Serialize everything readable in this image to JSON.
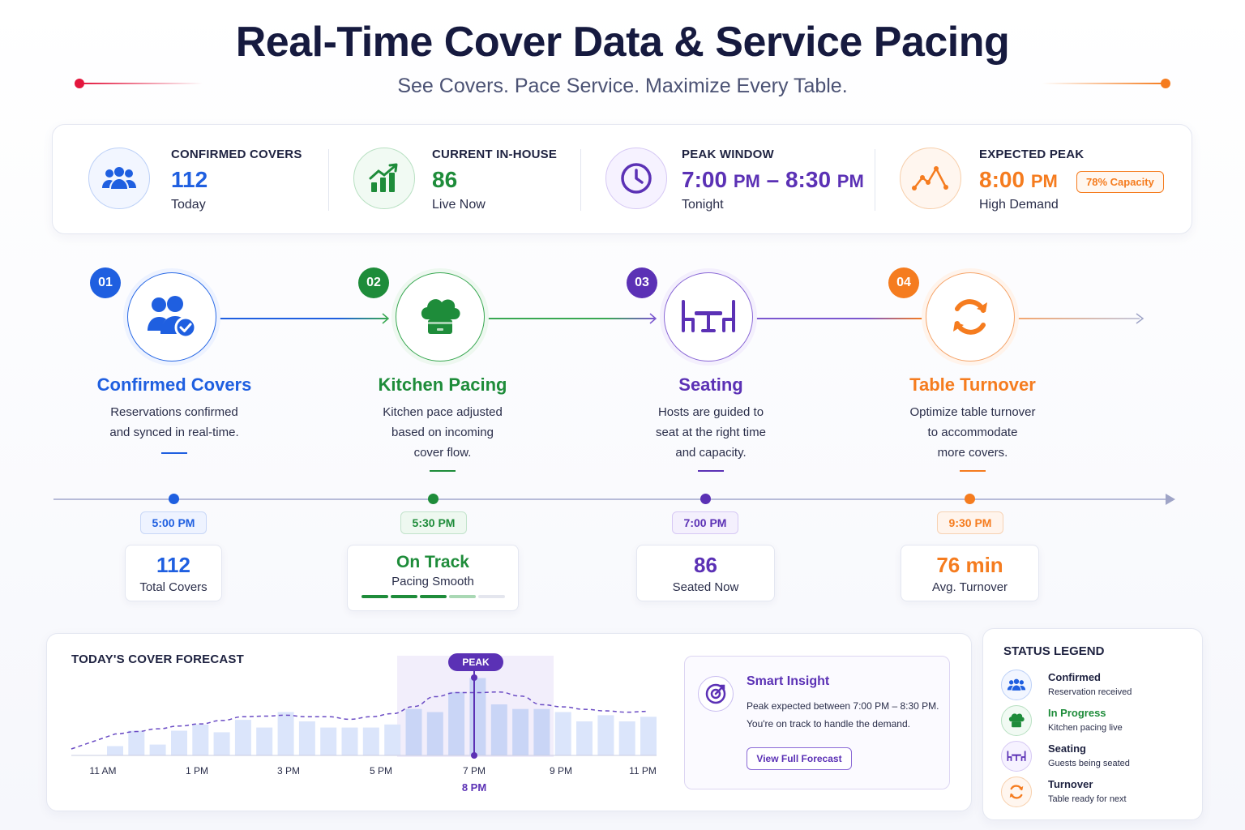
{
  "header": {
    "title": "Real-Time Cover Data & Service Pacing",
    "subtitle": "See Covers. Pace Service. Maximize Every Table."
  },
  "colors": {
    "blue": "#1f5fe0",
    "green": "#1e8c3a",
    "purple": "#5b31b5",
    "orange": "#f57c1f",
    "red": "#e3163d",
    "navy": "#161a3f"
  },
  "stats": [
    {
      "label": "CONFIRMED COVERS",
      "value": "112",
      "sub": "Today",
      "icon": "people-icon"
    },
    {
      "label": "CURRENT IN-HOUSE",
      "value": "86",
      "sub": "Live Now",
      "icon": "growth-chart-icon"
    },
    {
      "label": "PEAK WINDOW",
      "value_a": "7:00",
      "unit_a": "PM",
      "dash": "–",
      "value_b": "8:30",
      "unit_b": "PM",
      "sub": "Tonight",
      "icon": "clock-icon"
    },
    {
      "label": "EXPECTED PEAK",
      "value": "8:00",
      "unit": "PM",
      "sub": "High Demand",
      "badge": "78% Capacity",
      "icon": "peak-line-icon"
    }
  ],
  "steps": [
    {
      "num": "01",
      "name": "Confirmed Covers",
      "desc": [
        "Reservations confirmed",
        "and synced in real-time."
      ],
      "icon": "confirmed-people-icon"
    },
    {
      "num": "02",
      "name": "Kitchen Pacing",
      "desc": [
        "Kitchen pace adjusted",
        "based on incoming",
        "cover flow."
      ],
      "icon": "chef-hat-icon"
    },
    {
      "num": "03",
      "name": "Seating",
      "desc": [
        "Hosts are guided to",
        "seat at the right time",
        "and capacity."
      ],
      "icon": "table-chairs-icon"
    },
    {
      "num": "04",
      "name": "Table Turnover",
      "desc": [
        "Optimize table turnover",
        "to accommodate",
        "more covers."
      ],
      "icon": "refresh-icon"
    }
  ],
  "timeline": [
    {
      "time": "5:00 PM",
      "value": "112",
      "label": "Total Covers"
    },
    {
      "time": "5:30 PM",
      "value": "On Track",
      "label": "Pacing Smooth",
      "progress": 0.7
    },
    {
      "time": "7:00 PM",
      "value": "86",
      "label": "Seated Now"
    },
    {
      "time": "9:30 PM",
      "value": "76 min",
      "label": "Avg. Turnover"
    }
  ],
  "forecast": {
    "title": "TODAY'S COVER FORECAST",
    "peak_label": "PEAK",
    "peak_time": "8 PM"
  },
  "chart_data": {
    "type": "bar",
    "x_ticks": [
      "11 AM",
      "1 PM",
      "3 PM",
      "5 PM",
      "7 PM",
      "9 PM",
      "11 PM"
    ],
    "bar_values": [
      12,
      32,
      14,
      32,
      40,
      30,
      46,
      36,
      56,
      44,
      36,
      36,
      36,
      40,
      60,
      56,
      82,
      100,
      66,
      60,
      60,
      56,
      44,
      52,
      44,
      50
    ],
    "trend_line": true,
    "ylim": [
      0,
      110
    ],
    "highlight": "peak window"
  },
  "insight": {
    "title": "Smart Insight",
    "line1": "Peak expected between 7:00 PM – 8:30 PM.",
    "line2": "You're on track to handle the demand.",
    "button": "View Full Forecast"
  },
  "legend": {
    "title": "STATUS LEGEND",
    "items": [
      {
        "name": "Confirmed",
        "desc": "Reservation received",
        "icon": "people-icon"
      },
      {
        "name": "In Progress",
        "desc": "Kitchen pacing live",
        "icon": "chef-hat-icon"
      },
      {
        "name": "Seating",
        "desc": "Guests being seated",
        "icon": "table-chairs-icon"
      },
      {
        "name": "Turnover",
        "desc": "Table ready for next",
        "icon": "refresh-icon"
      }
    ]
  }
}
